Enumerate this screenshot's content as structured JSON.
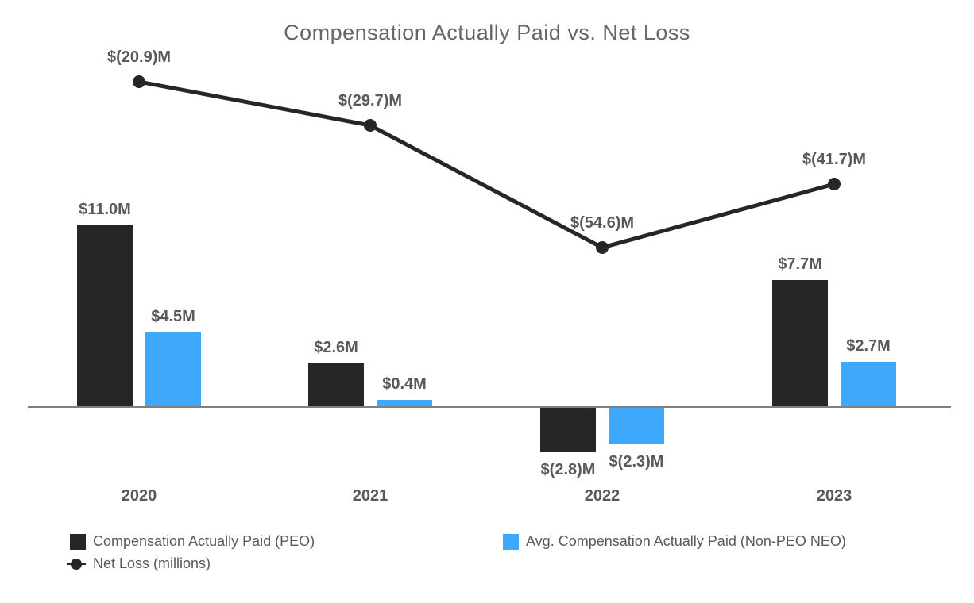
{
  "title": "Compensation Actually Paid vs. Net Loss",
  "chart_data": {
    "type": "bar",
    "subtype": "grouped bars with overlaid line (combo chart)",
    "categories": [
      "2020",
      "2021",
      "2022",
      "2023"
    ],
    "series": [
      {
        "name": "Compensation Actually Paid (PEO)",
        "type": "bar",
        "color": "#262626",
        "values": [
          11.0,
          2.6,
          -2.8,
          7.7
        ],
        "labels": [
          "$11.0M",
          "$2.6M",
          "$(2.8)M",
          "$7.7M"
        ]
      },
      {
        "name": "Avg. Compensation Actually Paid (Non-PEO NEO)",
        "type": "bar",
        "color": "#3EA9FC",
        "values": [
          4.5,
          0.4,
          -2.3,
          2.7
        ],
        "labels": [
          "$4.5M",
          "$0.4M",
          "$(2.3)M",
          "$2.7M"
        ]
      },
      {
        "name": "Net Loss (millions)",
        "type": "line",
        "color": "#262626",
        "values": [
          -20.9,
          -29.7,
          -54.6,
          -41.7
        ],
        "labels": [
          "$(20.9)M",
          "$(29.7)M",
          "$(54.6)M",
          "$(41.7)M"
        ]
      }
    ],
    "title": "Compensation Actually Paid vs. Net Loss",
    "xlabel": "",
    "ylabel": "",
    "grid": false,
    "y_axis_visible": false,
    "legend_position": "bottom"
  },
  "colors": {
    "peo_bar": "#262626",
    "neo_bar": "#3EA9FC",
    "net_loss_line": "#262626",
    "axis_line": "#7f7f7f",
    "label_text": "#595959",
    "title_text": "#666666",
    "background": "#ffffff"
  }
}
